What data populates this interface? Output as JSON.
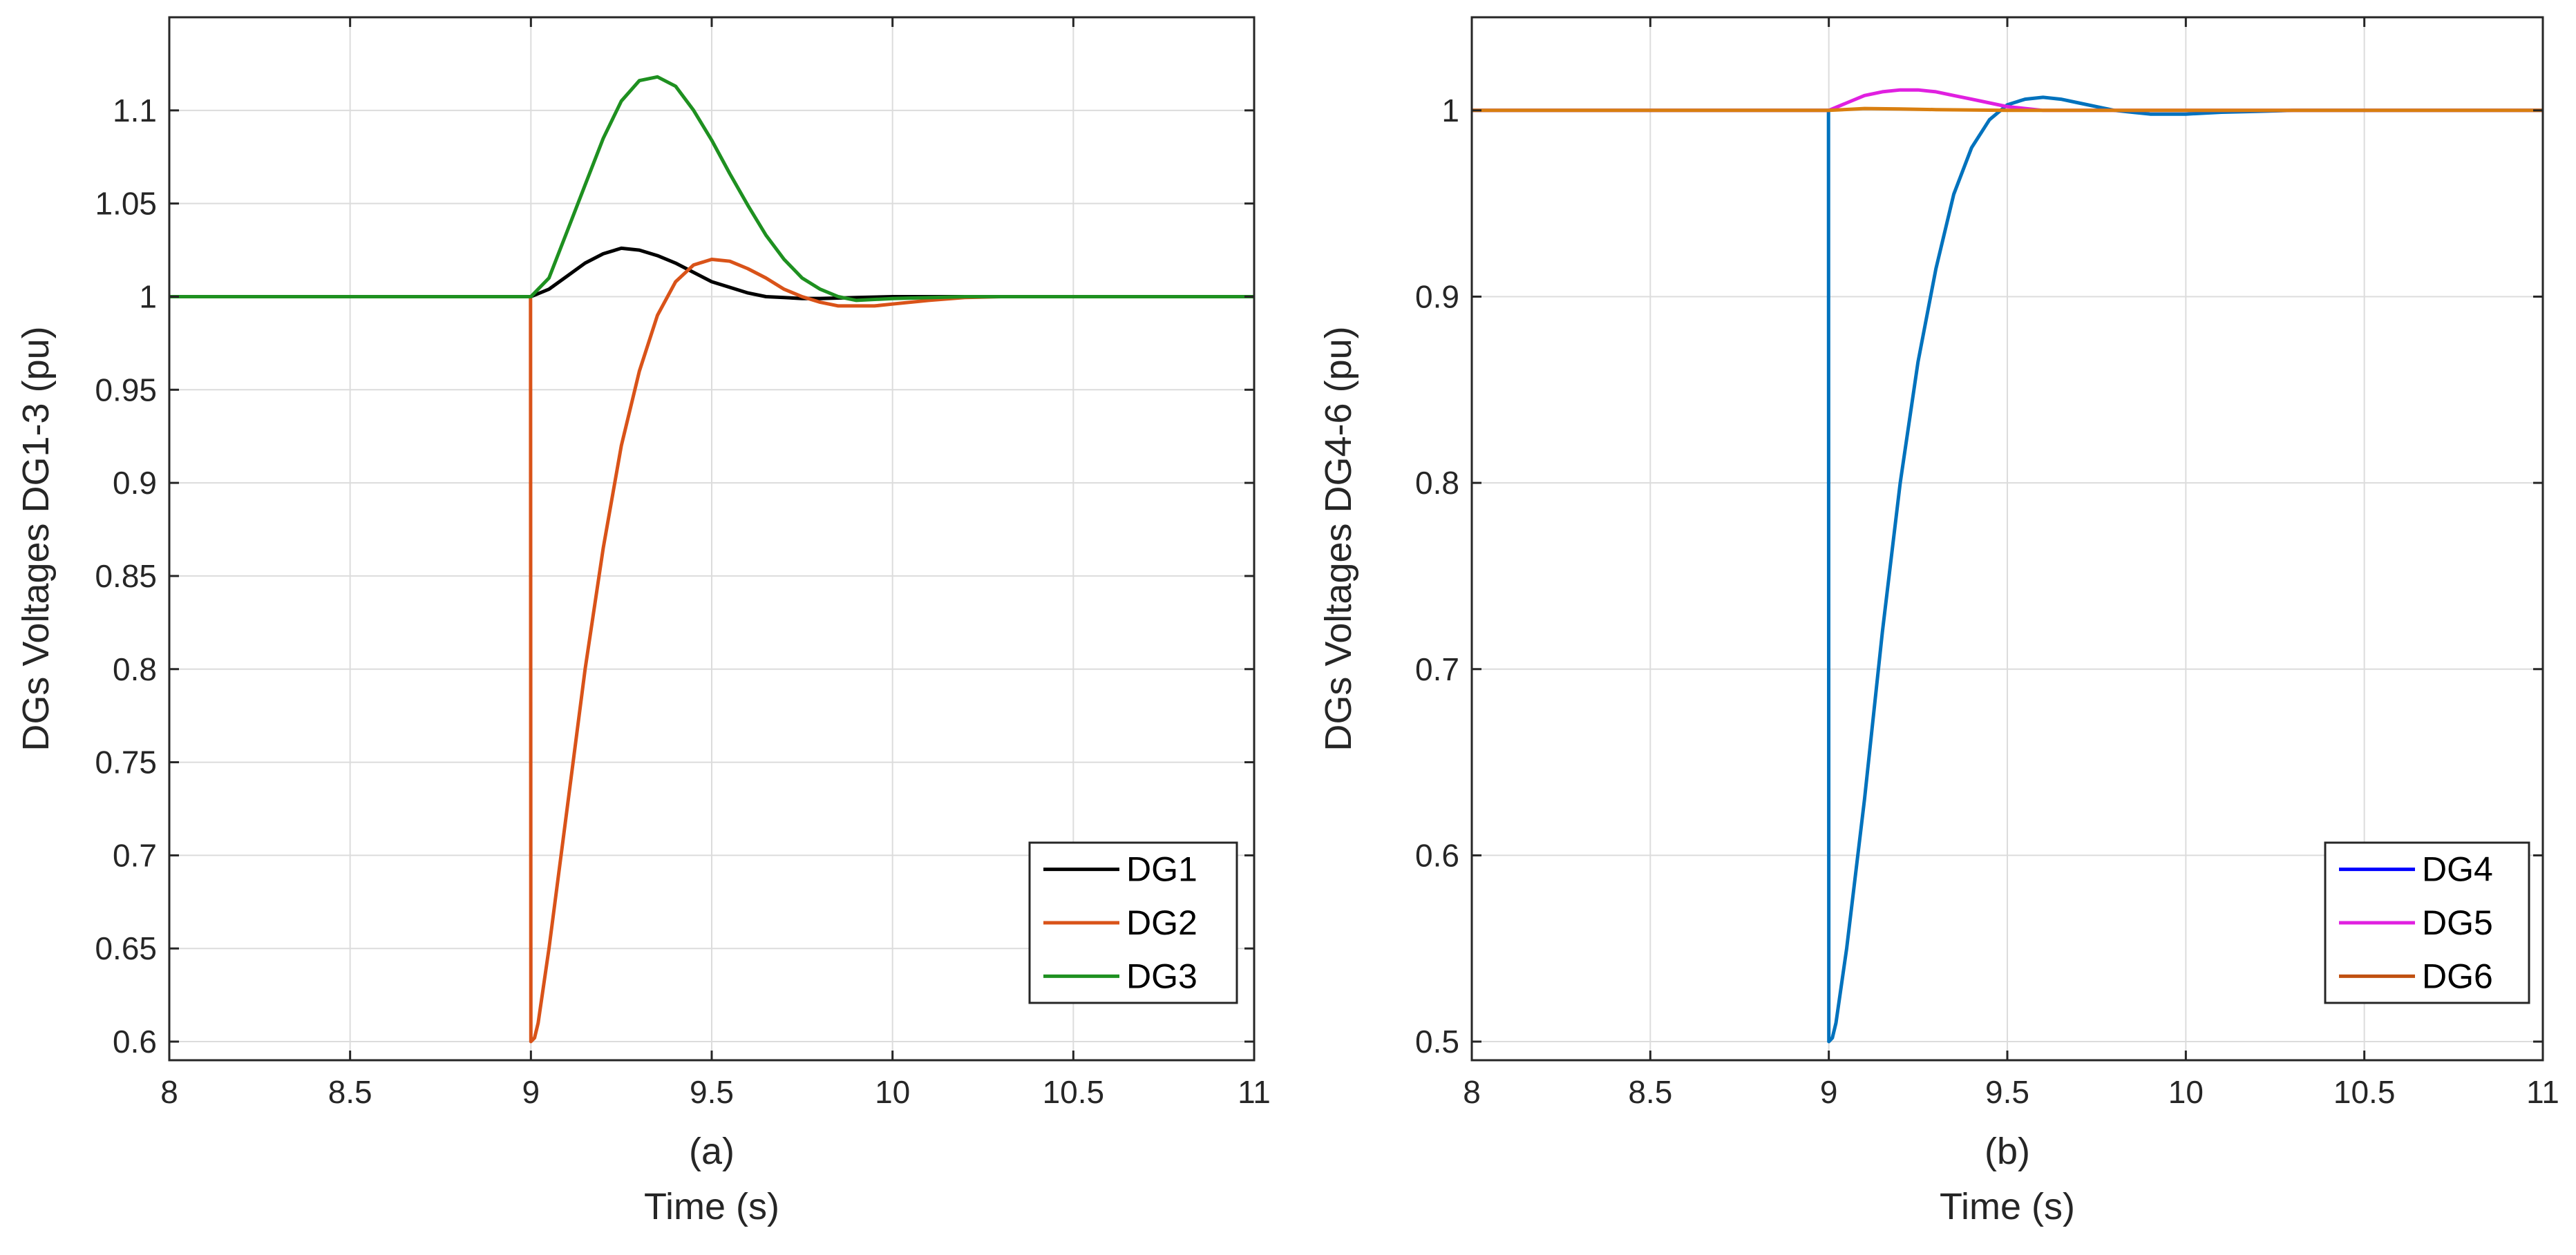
{
  "chart_data": [
    {
      "type": "line",
      "id": "a",
      "caption": "(a)",
      "xlabel": "Time (s)",
      "ylabel": "DGs Voltages DG1-3 (pu)",
      "xlim": [
        8,
        11
      ],
      "ylim": [
        0.59,
        1.15
      ],
      "xticks": [
        8,
        8.5,
        9,
        9.5,
        10,
        10.5,
        11
      ],
      "xtick_labels": [
        "8",
        "8.5",
        "9",
        "9.5",
        "10",
        "10.5",
        "11"
      ],
      "yticks": [
        0.6,
        0.65,
        0.7,
        0.75,
        0.8,
        0.85,
        0.9,
        0.95,
        1,
        1.05,
        1.1
      ],
      "ytick_labels": [
        "0.6",
        "0.65",
        "0.7",
        "0.75",
        "0.8",
        "0.85",
        "0.9",
        "0.95",
        "1",
        "1.05",
        "1.1"
      ],
      "grid": true,
      "legend_position": "bottom-right",
      "series": [
        {
          "name": "DG1",
          "color": "#000000",
          "x": [
            8,
            9,
            9.05,
            9.1,
            9.15,
            9.2,
            9.25,
            9.3,
            9.35,
            9.4,
            9.45,
            9.5,
            9.55,
            9.6,
            9.65,
            9.7,
            9.75,
            9.8,
            9.9,
            10,
            10.2,
            10.5,
            11
          ],
          "y": [
            1,
            1,
            1.004,
            1.011,
            1.018,
            1.023,
            1.026,
            1.025,
            1.022,
            1.018,
            1.013,
            1.008,
            1.005,
            1.002,
            1.0,
            0.9995,
            0.999,
            0.999,
            0.9995,
            1.0,
            1.0,
            1.0,
            1.0
          ]
        },
        {
          "name": "DG2",
          "color": "#D95319",
          "x": [
            8,
            8.999,
            9.0,
            9.01,
            9.02,
            9.05,
            9.1,
            9.15,
            9.2,
            9.25,
            9.3,
            9.35,
            9.4,
            9.45,
            9.5,
            9.55,
            9.6,
            9.65,
            9.7,
            9.75,
            9.8,
            9.85,
            9.9,
            9.95,
            10.0,
            10.1,
            10.2,
            10.3,
            10.5,
            11
          ],
          "y": [
            1,
            1,
            0.6,
            0.602,
            0.61,
            0.65,
            0.725,
            0.8,
            0.865,
            0.92,
            0.96,
            0.99,
            1.008,
            1.017,
            1.02,
            1.019,
            1.015,
            1.01,
            1.004,
            1.0,
            0.997,
            0.995,
            0.995,
            0.995,
            0.996,
            0.998,
            0.9995,
            1.0,
            1.0,
            1.0
          ]
        },
        {
          "name": "DG3",
          "color": "#1E9020",
          "x": [
            8,
            9,
            9.05,
            9.1,
            9.15,
            9.2,
            9.25,
            9.3,
            9.35,
            9.4,
            9.45,
            9.5,
            9.55,
            9.6,
            9.65,
            9.7,
            9.75,
            9.8,
            9.85,
            9.9,
            10,
            10.2,
            10.5,
            11
          ],
          "y": [
            1,
            1,
            1.01,
            1.035,
            1.06,
            1.085,
            1.105,
            1.116,
            1.118,
            1.113,
            1.1,
            1.084,
            1.066,
            1.049,
            1.033,
            1.02,
            1.01,
            1.004,
            1.0,
            0.998,
            0.999,
            1.0,
            1.0,
            1.0
          ]
        }
      ]
    },
    {
      "type": "line",
      "id": "b",
      "caption": "(b)",
      "xlabel": "Time (s)",
      "ylabel": "DGs Voltages DG4-6 (pu)",
      "xlim": [
        8,
        11
      ],
      "ylim": [
        0.49,
        1.05
      ],
      "xticks": [
        8,
        8.5,
        9,
        9.5,
        10,
        10.5,
        11
      ],
      "xtick_labels": [
        "8",
        "8.5",
        "9",
        "9.5",
        "10",
        "10.5",
        "11"
      ],
      "yticks": [
        0.5,
        0.6,
        0.7,
        0.8,
        0.9,
        1
      ],
      "ytick_labels": [
        "0.5",
        "0.6",
        "0.7",
        "0.8",
        "0.9",
        "1"
      ],
      "grid": true,
      "legend_position": "bottom-right",
      "series": [
        {
          "name": "DG4",
          "color": "#0072BD",
          "legend_color": "#0000FF",
          "x": [
            8,
            8.999,
            9.0,
            9.01,
            9.02,
            9.05,
            9.1,
            9.15,
            9.2,
            9.25,
            9.3,
            9.35,
            9.4,
            9.45,
            9.5,
            9.55,
            9.6,
            9.65,
            9.7,
            9.75,
            9.8,
            9.85,
            9.9,
            9.95,
            10.0,
            10.1,
            10.2,
            10.3,
            10.5,
            11
          ],
          "y": [
            1,
            1,
            0.5,
            0.502,
            0.51,
            0.55,
            0.63,
            0.72,
            0.8,
            0.865,
            0.915,
            0.955,
            0.98,
            0.995,
            1.003,
            1.006,
            1.007,
            1.006,
            1.004,
            1.002,
            1.0,
            0.999,
            0.998,
            0.998,
            0.998,
            0.999,
            0.9995,
            1.0,
            1.0,
            1.0
          ]
        },
        {
          "name": "DG5",
          "color": "#E020E0",
          "x": [
            8,
            9,
            9.05,
            9.1,
            9.15,
            9.2,
            9.25,
            9.3,
            9.35,
            9.4,
            9.45,
            9.5,
            9.55,
            9.6,
            9.7,
            9.8,
            10,
            10.5,
            11
          ],
          "y": [
            1,
            1,
            1.004,
            1.008,
            1.01,
            1.011,
            1.011,
            1.01,
            1.008,
            1.006,
            1.004,
            1.002,
            1.001,
            1.0,
            1.0,
            1.0,
            1.0,
            1.0,
            1.0
          ]
        },
        {
          "name": "DG6",
          "color": "#D97F10",
          "legend_color": "#C05010",
          "x": [
            8,
            9,
            9.05,
            9.1,
            9.2,
            9.3,
            9.5,
            10,
            11
          ],
          "y": [
            1,
            1,
            1.0005,
            1.001,
            1.0008,
            1.0004,
            1.0,
            1.0,
            1.0
          ]
        }
      ]
    }
  ]
}
